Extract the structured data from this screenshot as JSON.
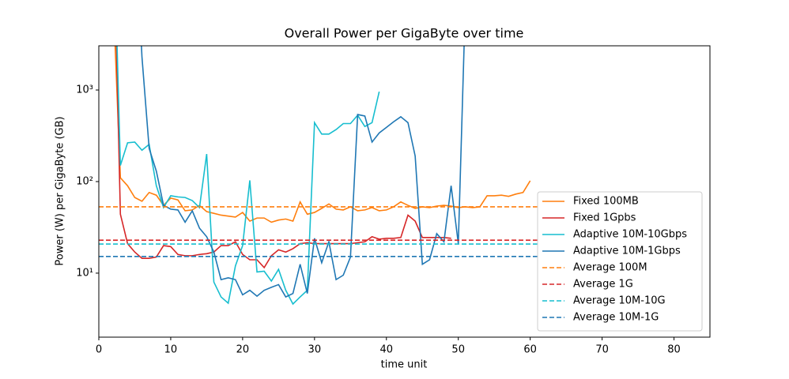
{
  "chart_data": {
    "type": "line",
    "title": "Overall Power per GigaByte over time",
    "xlabel": "time unit",
    "ylabel": "Power (W) per GigaByte (GB)",
    "xlim": [
      0,
      85
    ],
    "xticks": [
      0,
      10,
      20,
      30,
      40,
      50,
      60,
      70,
      80
    ],
    "ylim": [
      2,
      3040
    ],
    "yscale": "log",
    "yticks": [
      {
        "value": 10,
        "label": "10¹"
      },
      {
        "value": 100,
        "label": "10²"
      },
      {
        "value": 1000,
        "label": "10³"
      }
    ],
    "legend": "lower right",
    "series": [
      {
        "name": "Fixed 100MB",
        "color": "#ff7f0e",
        "linestyle": "solid",
        "x": [
          2,
          3,
          4,
          5,
          6,
          7,
          8,
          9,
          10,
          11,
          12,
          13,
          14,
          15,
          16,
          17,
          18,
          19,
          20,
          21,
          22,
          23,
          24,
          25,
          26,
          27,
          28,
          29,
          30,
          31,
          32,
          33,
          34,
          35,
          36,
          37,
          38,
          39,
          40,
          41,
          42,
          43,
          44,
          45,
          46,
          47,
          48,
          49,
          50,
          51,
          52,
          53,
          54,
          55,
          56,
          57,
          58,
          59,
          60
        ],
        "values": [
          10000,
          110,
          90,
          67,
          61,
          76,
          71,
          55,
          66,
          63,
          48,
          49,
          55,
          47,
          45,
          43,
          42,
          41,
          46,
          37,
          40,
          40,
          36,
          38,
          39,
          37,
          60,
          44,
          46,
          51,
          57,
          50,
          49,
          53,
          48,
          49,
          52,
          48,
          49,
          53,
          60,
          55,
          51,
          53,
          52,
          54,
          55,
          54,
          52,
          53,
          52,
          53,
          70,
          70,
          71,
          69,
          73,
          76,
          102
        ]
      },
      {
        "name": "Fixed 1Gpbs",
        "color": "#d62728",
        "linestyle": "solid",
        "x": [
          2,
          3,
          4,
          5,
          6,
          7,
          8,
          9,
          10,
          11,
          12,
          13,
          14,
          15,
          16,
          17,
          18,
          19,
          20,
          21,
          22,
          23,
          24,
          25,
          26,
          27,
          28,
          29,
          30,
          31,
          32,
          33,
          34,
          35,
          36,
          37,
          38,
          39,
          40,
          41,
          42,
          43,
          44,
          45,
          46,
          47,
          48,
          49
        ],
        "values": [
          100000,
          44,
          21,
          17,
          14.5,
          14.5,
          15,
          20,
          19.5,
          16,
          15.5,
          15.5,
          16,
          16.3,
          17,
          20,
          20,
          22,
          16,
          14,
          14,
          11.5,
          15.5,
          18,
          17,
          18.5,
          21,
          21.5,
          21,
          21,
          21,
          21,
          21,
          21,
          21.5,
          22,
          25,
          23.5,
          24,
          24,
          24.5,
          43,
          37,
          24.5,
          24.5,
          24.5,
          24.5,
          24
        ]
      },
      {
        "name": "Adaptive 10M-10Gbps",
        "color": "#17becf",
        "linestyle": "solid",
        "x": [
          2,
          3,
          4,
          5,
          6,
          7,
          8,
          9,
          10,
          11,
          12,
          13,
          14,
          15,
          16,
          17,
          18,
          19,
          20,
          21,
          22,
          23,
          24,
          25,
          26,
          27,
          28,
          29,
          30,
          31,
          32,
          33,
          34,
          35,
          36,
          37,
          38,
          39
        ],
        "values": [
          100000,
          150,
          265,
          270,
          220,
          255,
          90,
          52,
          70,
          68,
          67,
          62,
          52,
          200,
          8,
          5.5,
          4.7,
          12,
          20,
          103,
          10.3,
          10.5,
          8.2,
          11,
          6.5,
          4.6,
          5.5,
          6.5,
          440,
          330,
          330,
          370,
          430,
          430,
          530,
          400,
          440,
          960
        ]
      },
      {
        "name": "Adaptive 10M-1Gbps",
        "color": "#1f77b4",
        "linestyle": "solid",
        "x": [
          5,
          6,
          7,
          8,
          9,
          10,
          11,
          12,
          13,
          14,
          15,
          16,
          17,
          18,
          19,
          20,
          21,
          22,
          23,
          24,
          25,
          26,
          27,
          28,
          29,
          30,
          31,
          32,
          33,
          34,
          35,
          36,
          37,
          38,
          39,
          40,
          41,
          42,
          43,
          44,
          45,
          46,
          47,
          48,
          49,
          50,
          51
        ],
        "values": [
          100000,
          2300,
          230,
          130,
          55,
          50,
          49,
          36,
          48,
          31,
          25,
          17,
          8.5,
          8.9,
          8.5,
          5.8,
          6.5,
          5.6,
          6.5,
          7,
          7.5,
          5.5,
          6,
          12.5,
          6,
          24,
          13,
          22,
          8.5,
          9.5,
          15,
          540,
          520,
          270,
          340,
          390,
          450,
          510,
          440,
          190,
          12.5,
          14,
          27,
          22,
          90,
          21,
          10000
        ]
      },
      {
        "name": "Average 100M",
        "color": "#ff7f0e",
        "linestyle": "dashed",
        "x": [
          0,
          61
        ],
        "values": [
          53,
          53
        ]
      },
      {
        "name": "Average 1G",
        "color": "#d62728",
        "linestyle": "dashed",
        "x": [
          0,
          61
        ],
        "values": [
          22.9,
          22.9
        ]
      },
      {
        "name": "Average 10M-10G",
        "color": "#17becf",
        "linestyle": "dashed",
        "x": [
          0,
          61
        ],
        "values": [
          20.8,
          20.8
        ]
      },
      {
        "name": "Average 10M-1G",
        "color": "#1f77b4",
        "linestyle": "dashed",
        "x": [
          0,
          61
        ],
        "values": [
          15.2,
          15.2
        ]
      }
    ]
  }
}
